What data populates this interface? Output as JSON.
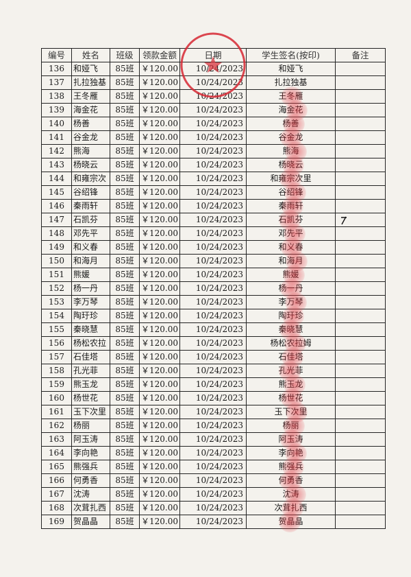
{
  "headers": [
    "编号",
    "姓名",
    "班级",
    "领款金额",
    "日期",
    "学生签名(按印)",
    "备注"
  ],
  "rows": [
    {
      "no": "136",
      "name": "和娅飞",
      "class": "85班",
      "amount": "￥120.00",
      "date": "10/24/2023",
      "signature": "和娅飞"
    },
    {
      "no": "137",
      "name": "扎拉独基",
      "class": "85班",
      "amount": "￥120.00",
      "date": "10/24/2023",
      "signature": "扎拉独基"
    },
    {
      "no": "138",
      "name": "王冬雁",
      "class": "85班",
      "amount": "￥120.00",
      "date": "10/24/2023",
      "signature": "王冬雁"
    },
    {
      "no": "139",
      "name": "海金花",
      "class": "85班",
      "amount": "￥120.00",
      "date": "10/24/2023",
      "signature": "海金花"
    },
    {
      "no": "140",
      "name": "杨善",
      "class": "85班",
      "amount": "￥120.00",
      "date": "10/24/2023",
      "signature": "杨善"
    },
    {
      "no": "141",
      "name": "谷金龙",
      "class": "85班",
      "amount": "￥120.00",
      "date": "10/24/2023",
      "signature": "谷金龙"
    },
    {
      "no": "142",
      "name": "熊海",
      "class": "85班",
      "amount": "￥120.00",
      "date": "10/24/2023",
      "signature": "熊海"
    },
    {
      "no": "143",
      "name": "杨晓云",
      "class": "85班",
      "amount": "￥120.00",
      "date": "10/24/2023",
      "signature": "杨晓云"
    },
    {
      "no": "144",
      "name": "和雍宗次",
      "class": "85班",
      "amount": "￥120.00",
      "date": "10/24/2023",
      "signature": "和雍宗次里"
    },
    {
      "no": "145",
      "name": "谷绍锋",
      "class": "85班",
      "amount": "￥120.00",
      "date": "10/24/2023",
      "signature": "谷绍锋"
    },
    {
      "no": "146",
      "name": "秦雨轩",
      "class": "85班",
      "amount": "￥120.00",
      "date": "10/24/2023",
      "signature": "秦雨轩"
    },
    {
      "no": "147",
      "name": "石凯芬",
      "class": "85班",
      "amount": "￥120.00",
      "date": "10/24/2023",
      "signature": "石凯芬"
    },
    {
      "no": "148",
      "name": "邓先平",
      "class": "85班",
      "amount": "￥120.00",
      "date": "10/24/2023",
      "signature": "邓先平"
    },
    {
      "no": "149",
      "name": "和义春",
      "class": "85班",
      "amount": "￥120.00",
      "date": "10/24/2023",
      "signature": "和义春"
    },
    {
      "no": "150",
      "name": "和海月",
      "class": "85班",
      "amount": "￥120.00",
      "date": "10/24/2023",
      "signature": "和海月"
    },
    {
      "no": "151",
      "name": "熊媛",
      "class": "85班",
      "amount": "￥120.00",
      "date": "10/24/2023",
      "signature": "熊媛"
    },
    {
      "no": "152",
      "name": "杨一丹",
      "class": "85班",
      "amount": "￥120.00",
      "date": "10/24/2023",
      "signature": "杨一丹"
    },
    {
      "no": "153",
      "name": "李万琴",
      "class": "85班",
      "amount": "￥120.00",
      "date": "10/24/2023",
      "signature": "李万琴"
    },
    {
      "no": "154",
      "name": "陶玗珍",
      "class": "85班",
      "amount": "￥120.00",
      "date": "10/24/2023",
      "signature": "陶玗珍"
    },
    {
      "no": "155",
      "name": "秦晓慧",
      "class": "85班",
      "amount": "￥120.00",
      "date": "10/24/2023",
      "signature": "秦晓慧"
    },
    {
      "no": "156",
      "name": "杨松农拉",
      "class": "85班",
      "amount": "￥120.00",
      "date": "10/24/2023",
      "signature": "杨松农拉姆"
    },
    {
      "no": "157",
      "name": "石佳塔",
      "class": "85班",
      "amount": "￥120.00",
      "date": "10/24/2023",
      "signature": "石佳塔"
    },
    {
      "no": "158",
      "name": "孔光菲",
      "class": "85班",
      "amount": "￥120.00",
      "date": "10/24/2023",
      "signature": "孔光菲"
    },
    {
      "no": "159",
      "name": "熊玉龙",
      "class": "85班",
      "amount": "￥120.00",
      "date": "10/24/2023",
      "signature": "熊玉龙"
    },
    {
      "no": "160",
      "name": "杨世花",
      "class": "85班",
      "amount": "￥120.00",
      "date": "10/24/2023",
      "signature": "杨世花"
    },
    {
      "no": "161",
      "name": "玉下次里",
      "class": "85班",
      "amount": "￥120.00",
      "date": "10/24/2023",
      "signature": "玉下次里"
    },
    {
      "no": "162",
      "name": "杨丽",
      "class": "85班",
      "amount": "￥120.00",
      "date": "10/24/2023",
      "signature": "杨丽"
    },
    {
      "no": "163",
      "name": "阿玉涛",
      "class": "85班",
      "amount": "￥120.00",
      "date": "10/24/2023",
      "signature": "阿玉涛"
    },
    {
      "no": "164",
      "name": "李向艳",
      "class": "85班",
      "amount": "￥120.00",
      "date": "10/24/2023",
      "signature": "李向艳"
    },
    {
      "no": "165",
      "name": "熊强兵",
      "class": "85班",
      "amount": "￥120.00",
      "date": "10/24/2023",
      "signature": "熊强兵"
    },
    {
      "no": "166",
      "name": "何勇香",
      "class": "85班",
      "amount": "￥120.00",
      "date": "10/24/2023",
      "signature": "何勇香"
    },
    {
      "no": "167",
      "name": "沈涛",
      "class": "85班",
      "amount": "￥120.00",
      "date": "10/24/2023",
      "signature": "沈涛"
    },
    {
      "no": "168",
      "name": "次茸扎西",
      "class": "85班",
      "amount": "￥120.00",
      "date": "10/24/2023",
      "signature": "次茸扎西"
    },
    {
      "no": "169",
      "name": "贺晶晶",
      "class": "85班",
      "amount": "￥120.00",
      "date": "10/24/2023",
      "signature": "贺晶晶"
    }
  ],
  "stamp_color": "#d62832",
  "fingerprint_color": "#e1323c"
}
